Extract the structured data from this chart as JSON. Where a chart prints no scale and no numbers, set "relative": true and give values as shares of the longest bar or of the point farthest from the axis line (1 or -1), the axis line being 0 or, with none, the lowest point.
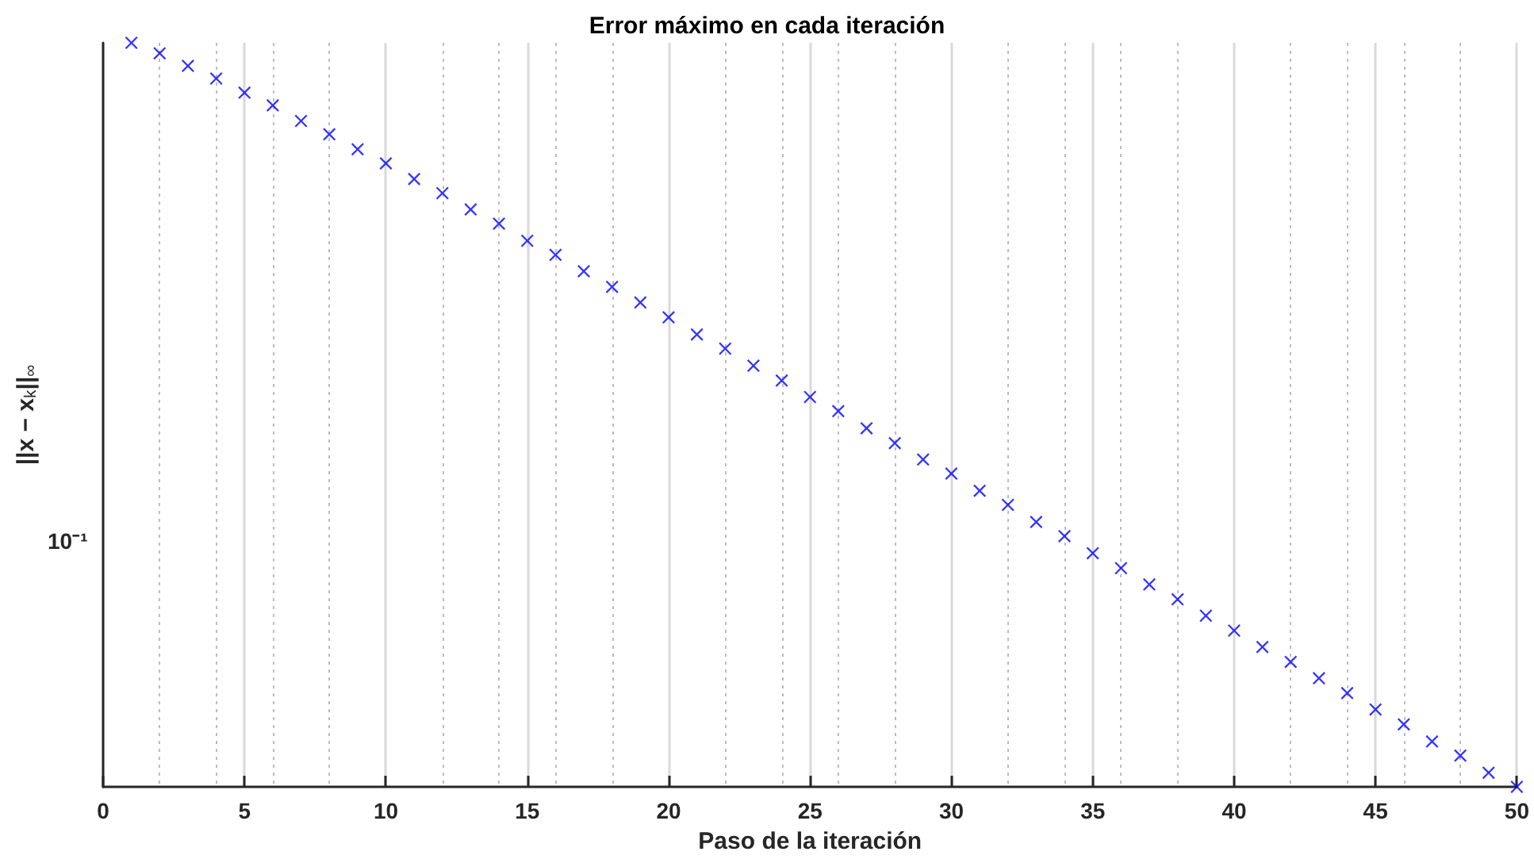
{
  "chart_data": {
    "type": "scatter",
    "title": "Error máximo en cada iteración",
    "xlabel": "Paso de la iteración",
    "ylabel": "||x − x$_{k}$||$_{∞}$",
    "x": [
      1,
      2,
      3,
      4,
      5,
      6,
      7,
      8,
      9,
      10,
      11,
      12,
      13,
      14,
      15,
      16,
      17,
      18,
      19,
      20,
      21,
      22,
      23,
      24,
      25,
      26,
      27,
      28,
      29,
      30,
      31,
      32,
      33,
      34,
      35,
      36,
      37,
      38,
      39,
      40,
      41,
      42,
      43,
      44,
      45,
      46,
      47,
      48,
      49,
      50
    ],
    "series": [
      {
        "color": "#0000ff",
        "values": [
          1,
          0.986,
          0.969,
          0.952,
          0.933,
          0.916,
          0.895,
          0.877,
          0.857,
          0.838,
          0.817,
          0.798,
          0.776,
          0.757,
          0.734,
          0.715,
          0.693,
          0.672,
          0.651,
          0.631,
          0.608,
          0.589,
          0.566,
          0.546,
          0.524,
          0.505,
          0.482,
          0.462,
          0.44,
          0.421,
          0.398,
          0.379,
          0.356,
          0.337,
          0.314,
          0.294,
          0.272,
          0.252,
          0.23,
          0.21,
          0.188,
          0.168,
          0.146,
          0.126,
          0.104,
          0.084,
          0.061,
          0.042,
          0.019,
          0
        ]
      }
    ],
    "relative": true,
    "xlim": [
      0,
      50
    ],
    "xticks": [
      0,
      5,
      10,
      15,
      20,
      25,
      30,
      35,
      40,
      45,
      50
    ],
    "annotations": [
      "10⁻¹"
    ],
    "grid": "x",
    "marker": "cross"
  }
}
